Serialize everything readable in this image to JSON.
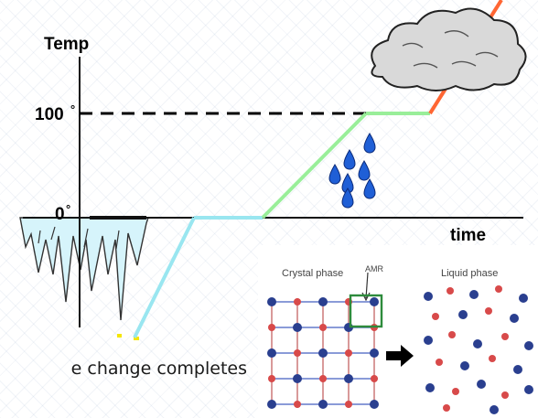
{
  "diagram": {
    "y_axis_label": "Temp",
    "x_axis_label": "time",
    "label_100": "100",
    "label_0": "0",
    "caption": "e change completes",
    "colors": {
      "ice_segment": "#99e6f0",
      "warm_segment": "#99ee99",
      "steam_segment": "#ff6633",
      "water_drops": "#1f5fd6",
      "cloud": "#d9d9d9"
    }
  },
  "inset": {
    "crystal_label": "Crystal phase",
    "amr_label": "AMR",
    "liquid_label": "Liquid phase",
    "colors": {
      "atom_blue": "#2a3f8f",
      "atom_red": "#d84a4a",
      "amr_box": "#2e8b3c"
    }
  }
}
